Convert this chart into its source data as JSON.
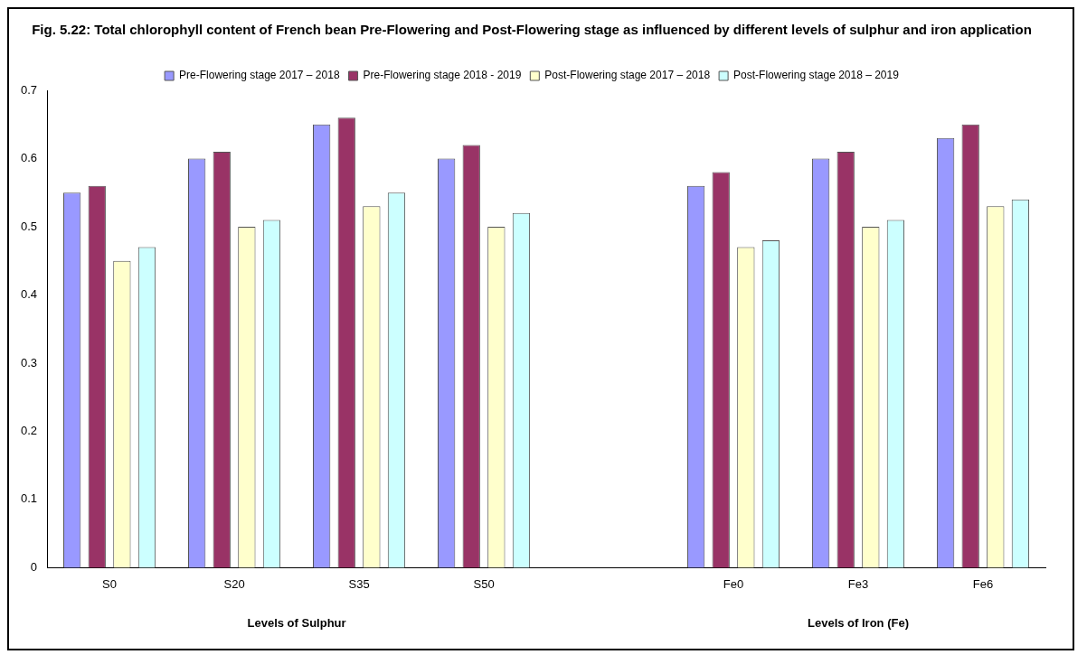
{
  "chart_data": {
    "type": "bar",
    "title": "Fig. 5.22: Total chlorophyll content of French bean Pre-Flowering and Post-Flowering stage as influenced by different levels of sulphur and iron application",
    "categories": [
      "S0",
      "S20",
      "S35",
      "S50",
      null,
      "Fe0",
      "Fe3",
      "Fe6"
    ],
    "series": [
      {
        "name": "Pre-Flowering stage 2017 – 2018",
        "color": "#9999ff",
        "values": [
          0.55,
          0.6,
          0.65,
          0.6,
          null,
          0.56,
          0.6,
          0.63
        ]
      },
      {
        "name": "Pre-Flowering stage 2018 - 2019",
        "color": "#993366",
        "values": [
          0.56,
          0.61,
          0.66,
          0.62,
          null,
          0.58,
          0.61,
          0.65
        ]
      },
      {
        "name": "Post-Flowering stage 2017 – 2018",
        "color": "#ffffcc",
        "values": [
          0.45,
          0.5,
          0.53,
          0.5,
          null,
          0.47,
          0.5,
          0.53
        ]
      },
      {
        "name": "Post-Flowering stage 2018 – 2019",
        "color": "#ccffff",
        "values": [
          0.47,
          0.51,
          0.55,
          0.52,
          null,
          0.48,
          0.51,
          0.54
        ]
      }
    ],
    "ylim": [
      0,
      0.7
    ],
    "yticks": [
      0,
      0.1,
      0.2,
      0.3,
      0.4,
      0.5,
      0.6,
      0.7
    ],
    "grid": false,
    "legend": "top",
    "annotations": [
      "Levels of Sulphur",
      "Levels of Iron (Fe)"
    ]
  }
}
